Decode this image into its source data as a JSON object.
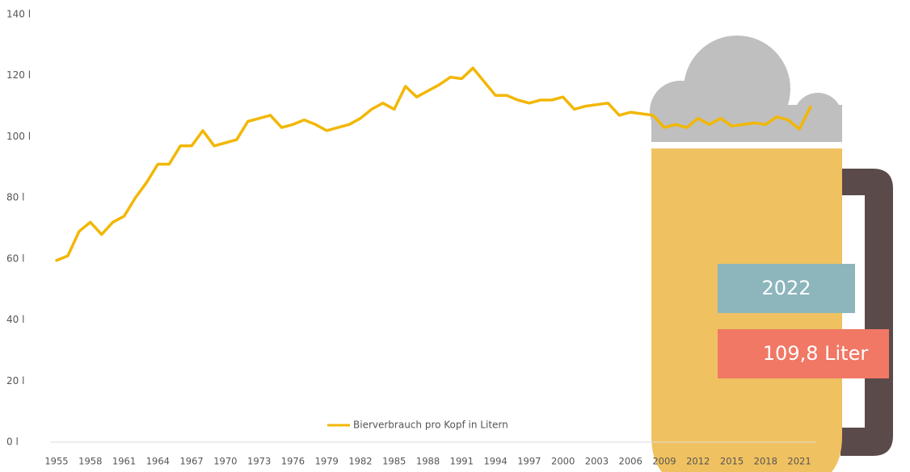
{
  "chart_data": {
    "type": "line",
    "x": [
      1955,
      1956,
      1957,
      1958,
      1959,
      1960,
      1961,
      1962,
      1963,
      1964,
      1965,
      1966,
      1967,
      1968,
      1969,
      1970,
      1971,
      1972,
      1973,
      1974,
      1975,
      1976,
      1977,
      1978,
      1979,
      1980,
      1981,
      1982,
      1983,
      1984,
      1985,
      1986,
      1987,
      1988,
      1989,
      1990,
      1991,
      1992,
      1993,
      1994,
      1995,
      1996,
      1997,
      1998,
      1999,
      2000,
      2001,
      2002,
      2003,
      2004,
      2005,
      2006,
      2007,
      2008,
      2009,
      2010,
      2011,
      2012,
      2013,
      2014,
      2015,
      2016,
      2017,
      2018,
      2019,
      2020,
      2021,
      2022
    ],
    "series": [
      {
        "name": "Bierverbrauch pro Kopf in Litern",
        "color": "#f2b705",
        "values": [
          59.5,
          61,
          69,
          72,
          68,
          72,
          74,
          80,
          85,
          91,
          91,
          97,
          97,
          102,
          97,
          98,
          99,
          105,
          106,
          107,
          103,
          104,
          105.5,
          104,
          102,
          103,
          104,
          106,
          109,
          111,
          109,
          116.5,
          113,
          115,
          117,
          119.5,
          119,
          122.5,
          118,
          113.5,
          113.5,
          112,
          111,
          112,
          112,
          113,
          109,
          110,
          110.5,
          111,
          107,
          108,
          107.5,
          107,
          103,
          104,
          103,
          106,
          104,
          106,
          103.5,
          104,
          104.5,
          104,
          106.5,
          105.5,
          102.5,
          109.8
        ]
      }
    ],
    "xlim": [
      1955,
      2022
    ],
    "xticks": [
      1955,
      1958,
      1961,
      1964,
      1967,
      1970,
      1973,
      1976,
      1979,
      1982,
      1985,
      1988,
      1991,
      1994,
      1997,
      2000,
      2003,
      2006,
      2009,
      2012,
      2015,
      2018,
      2021
    ],
    "ylim": [
      0,
      140
    ],
    "yticks": [
      {
        "value": 0,
        "label": "0 l"
      },
      {
        "value": 20,
        "label": "20 l"
      },
      {
        "value": 40,
        "label": "40 l"
      },
      {
        "value": 60,
        "label": "60 l"
      },
      {
        "value": 80,
        "label": "80 l"
      },
      {
        "value": 100,
        "label": "100 l"
      },
      {
        "value": 120,
        "label": "120 l"
      },
      {
        "value": 140,
        "label": "140 l"
      }
    ],
    "grid": false,
    "legend": "bottom",
    "annotations": [
      "2022",
      "109,8 Liter"
    ]
  }
}
